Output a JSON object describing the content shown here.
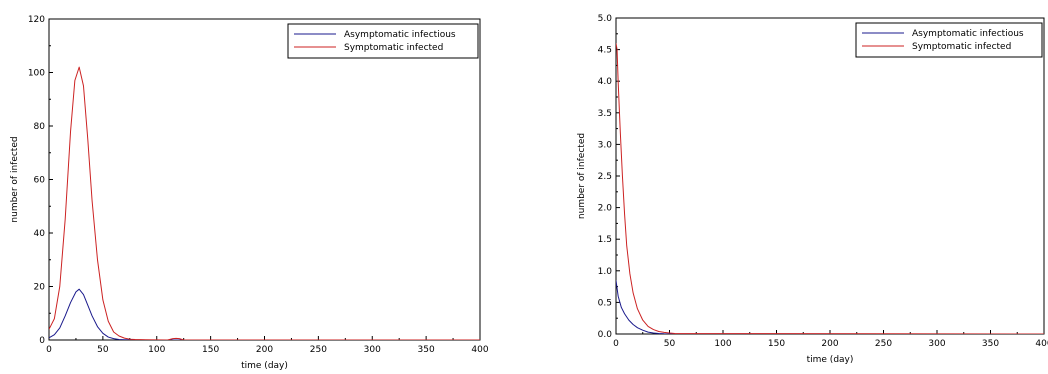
{
  "colors": {
    "asymptomatic": "#1a1a8c",
    "symptomatic": "#cc2222",
    "axis": "#000000"
  },
  "chart_data": [
    {
      "type": "line",
      "title": "",
      "xlabel": "time (day)",
      "ylabel": "number of infected",
      "xlim": [
        0,
        400
      ],
      "ylim": [
        0,
        120
      ],
      "xticks": [
        0,
        50,
        100,
        150,
        200,
        250,
        300,
        350,
        400
      ],
      "yticks": [
        0,
        20,
        40,
        60,
        80,
        100,
        120
      ],
      "ytick_labels": [
        "0",
        "20",
        "40",
        "60",
        "80",
        "100",
        "120"
      ],
      "grid": false,
      "legend": "top-right",
      "series": [
        {
          "name": "Asymptomatic infectious",
          "color": "#1a1a8c",
          "x": [
            0,
            5,
            10,
            15,
            20,
            25,
            28,
            32,
            36,
            40,
            45,
            50,
            55,
            60,
            65,
            70,
            80,
            90,
            400
          ],
          "y": [
            0.8,
            2,
            4.5,
            9,
            14,
            18,
            19,
            17,
            13,
            9,
            5,
            2.5,
            1.1,
            0.5,
            0.2,
            0.1,
            0.05,
            0,
            0
          ]
        },
        {
          "name": "Symptomatic infected",
          "color": "#cc2222",
          "x": [
            0,
            5,
            10,
            15,
            20,
            24,
            28,
            32,
            36,
            40,
            45,
            50,
            55,
            60,
            65,
            70,
            75,
            80,
            90,
            110,
            115,
            118,
            121,
            125,
            400
          ],
          "y": [
            4,
            8,
            20,
            45,
            78,
            97,
            102,
            95,
            75,
            52,
            30,
            15,
            7,
            3,
            1.5,
            0.7,
            0.3,
            0.2,
            0.1,
            0,
            0.5,
            0.6,
            0.5,
            0,
            0
          ]
        }
      ]
    },
    {
      "type": "line",
      "title": "",
      "xlabel": "time (day)",
      "ylabel": "number of infected",
      "xlim": [
        0,
        400
      ],
      "ylim": [
        0,
        5
      ],
      "xticks": [
        0,
        50,
        100,
        150,
        200,
        250,
        300,
        350,
        400
      ],
      "yticks": [
        0,
        0.5,
        1,
        1.5,
        2,
        2.5,
        3,
        3.5,
        4,
        4.5,
        5
      ],
      "ytick_labels": [
        "0.0",
        "0.5",
        "1.0",
        "1.5",
        "2.0",
        "2.5",
        "3.0",
        "3.5",
        "4.0",
        "4.5",
        "5.0"
      ],
      "grid": false,
      "legend": "top-right",
      "series": [
        {
          "name": "Asymptomatic infectious",
          "color": "#1a1a8c",
          "x": [
            0,
            2,
            5,
            8,
            12,
            16,
            20,
            25,
            30,
            35,
            40,
            45,
            50,
            400
          ],
          "y": [
            0.85,
            0.6,
            0.42,
            0.32,
            0.22,
            0.15,
            0.1,
            0.06,
            0.03,
            0.015,
            0.008,
            0.004,
            0.002,
            0
          ]
        },
        {
          "name": "Symptomatic infected",
          "color": "#cc2222",
          "x": [
            0,
            1,
            2,
            4,
            6,
            8,
            10,
            13,
            16,
            20,
            25,
            30,
            35,
            40,
            45,
            50,
            55,
            400
          ],
          "y": [
            4.6,
            4.5,
            4.0,
            3.2,
            2.5,
            1.9,
            1.4,
            0.95,
            0.65,
            0.4,
            0.22,
            0.12,
            0.07,
            0.04,
            0.025,
            0.015,
            0.008,
            0
          ]
        }
      ]
    }
  ]
}
